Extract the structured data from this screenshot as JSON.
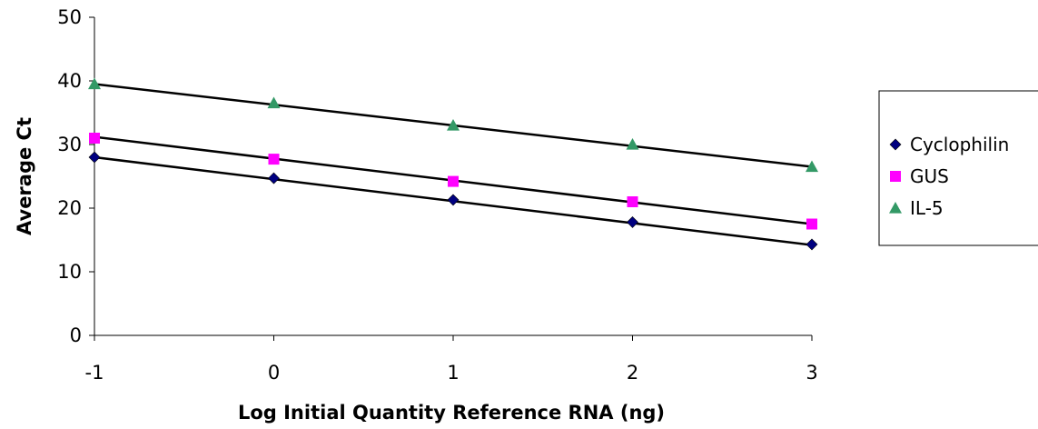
{
  "chart_data": {
    "type": "scatter",
    "xlabel": "Log Initial Quantity Reference RNA (ng)",
    "ylabel": "Average Ct",
    "xlim": [
      -1,
      3
    ],
    "ylim": [
      0,
      50
    ],
    "x_ticks": [
      -1,
      0,
      1,
      2,
      3
    ],
    "y_ticks": [
      0,
      10,
      20,
      30,
      40,
      50
    ],
    "grid": false,
    "legend_position": "right",
    "trendlines": true,
    "series": [
      {
        "name": "Cyclophilin",
        "marker": "diamond",
        "color": "#000080",
        "x": [
          -1,
          0,
          1,
          2,
          3
        ],
        "y": [
          28.0,
          24.7,
          21.3,
          17.8,
          14.3
        ],
        "fit": [
          [
            -1,
            28.0
          ],
          [
            3,
            14.2
          ]
        ]
      },
      {
        "name": "GUS",
        "marker": "square",
        "color": "#FF00FF",
        "x": [
          -1,
          0,
          1,
          2,
          3
        ],
        "y": [
          31.0,
          27.7,
          24.2,
          21.0,
          17.5
        ],
        "fit": [
          [
            -1,
            31.2
          ],
          [
            3,
            17.5
          ]
        ]
      },
      {
        "name": "IL-5",
        "marker": "triangle",
        "color": "#339966",
        "x": [
          -1,
          0,
          1,
          2,
          3
        ],
        "y": [
          39.5,
          36.5,
          33.0,
          30.0,
          26.5
        ],
        "fit": [
          [
            -1,
            39.5
          ],
          [
            3,
            26.5
          ]
        ]
      }
    ]
  }
}
